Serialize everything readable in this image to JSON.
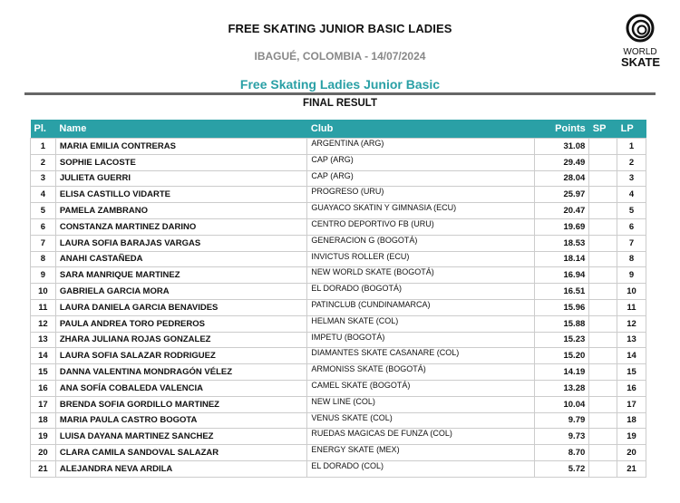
{
  "header": {
    "title": "FREE SKATING JUNIOR BASIC LADIES",
    "location_date": "IBAGUÉ, COLOMBIA - 14/07/2024",
    "logo_text": [
      "WORLD",
      "SKATE"
    ]
  },
  "event": {
    "title": "Free Skating Ladies Junior Basic",
    "subtitle": "FINAL RESULT"
  },
  "colors": {
    "accent": "#2aa0a6"
  },
  "table": {
    "columns": [
      "Pl.",
      "Name",
      "Club",
      "Points",
      "SP",
      "LP"
    ],
    "rows": [
      [
        "1",
        "MARIA EMILIA CONTRERAS",
        "ARGENTINA (ARG)",
        "31.08",
        "",
        "1"
      ],
      [
        "2",
        "SOPHIE LACOSTE",
        "CAP (ARG)",
        "29.49",
        "",
        "2"
      ],
      [
        "3",
        "JULIETA GUERRI",
        "CAP (ARG)",
        "28.04",
        "",
        "3"
      ],
      [
        "4",
        "ELISA CASTILLO VIDARTE",
        "PROGRESO (URU)",
        "25.97",
        "",
        "4"
      ],
      [
        "5",
        "PAMELA ZAMBRANO",
        "GUAYACO SKATIN Y GIMNASIA (ECU)",
        "20.47",
        "",
        "5"
      ],
      [
        "6",
        "CONSTANZA MARTINEZ DARINO",
        "CENTRO DEPORTIVO FB (URU)",
        "19.69",
        "",
        "6"
      ],
      [
        "7",
        "LAURA SOFIA BARAJAS VARGAS",
        "GENERACION G (BOGOTÁ)",
        "18.53",
        "",
        "7"
      ],
      [
        "8",
        "ANAHI CASTAÑEDA",
        "INVICTUS ROLLER (ECU)",
        "18.14",
        "",
        "8"
      ],
      [
        "9",
        "SARA MANRIQUE MARTINEZ",
        "NEW WORLD SKATE (BOGOTÁ)",
        "16.94",
        "",
        "9"
      ],
      [
        "10",
        "GABRIELA GARCIA MORA",
        "EL DORADO (BOGOTÁ)",
        "16.51",
        "",
        "10"
      ],
      [
        "11",
        "LAURA DANIELA GARCIA BENAVIDES",
        "PATINCLUB (CUNDINAMARCA)",
        "15.96",
        "",
        "11"
      ],
      [
        "12",
        "PAULA ANDREA TORO PEDREROS",
        "HELMAN SKATE (COL)",
        "15.88",
        "",
        "12"
      ],
      [
        "13",
        "ZHARA JULIANA ROJAS GONZALEZ",
        "IMPETU (BOGOTÁ)",
        "15.23",
        "",
        "13"
      ],
      [
        "14",
        "LAURA SOFIA SALAZAR RODRIGUEZ",
        "DIAMANTES SKATE CASANARE (COL)",
        "15.20",
        "",
        "14"
      ],
      [
        "15",
        "DANNA VALENTINA MONDRAGÓN VÉLEZ",
        "ARMONISS SKATE (BOGOTÁ)",
        "14.19",
        "",
        "15"
      ],
      [
        "16",
        "ANA SOFÍA COBALEDA VALENCIA",
        "CAMEL SKATE (BOGOTÁ)",
        "13.28",
        "",
        "16"
      ],
      [
        "17",
        "BRENDA SOFIA GORDILLO MARTINEZ",
        "NEW LINE (COL)",
        "10.04",
        "",
        "17"
      ],
      [
        "18",
        "MARIA PAULA CASTRO BOGOTA",
        "VENUS SKATE (COL)",
        "9.79",
        "",
        "18"
      ],
      [
        "19",
        "LUISA DAYANA MARTINEZ SANCHEZ",
        "RUEDAS MAGICAS DE FUNZA (COL)",
        "9.73",
        "",
        "19"
      ],
      [
        "20",
        "CLARA CAMILA SANDOVAL SALAZAR",
        "ENERGY SKATE (MEX)",
        "8.70",
        "",
        "20"
      ],
      [
        "21",
        "ALEJANDRA NEVA ARDILA",
        "EL DORADO (COL)",
        "5.72",
        "",
        "21"
      ]
    ]
  }
}
